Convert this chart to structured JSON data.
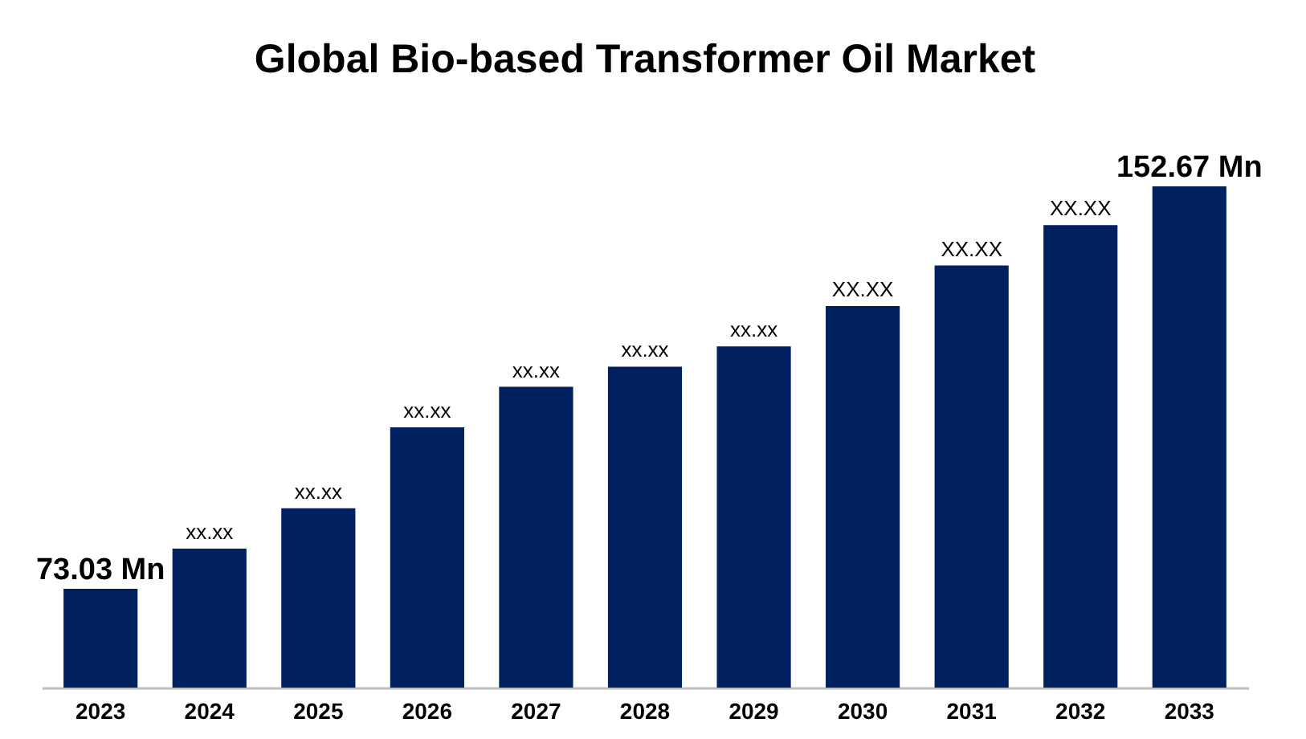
{
  "chart_data": {
    "type": "bar",
    "title": "Global Bio-based Transformer Oil Market",
    "categories": [
      "2023",
      "2024",
      "2025",
      "2026",
      "2027",
      "2028",
      "2029",
      "2030",
      "2031",
      "2032",
      "2033"
    ],
    "values": [
      73.03,
      81,
      89,
      105,
      113,
      117,
      121,
      129,
      137,
      145,
      152.67
    ],
    "value_labels": [
      "73.03 Mn",
      "xx.xx",
      "xx.xx",
      "xx.xx",
      "xx.xx",
      "xx.xx",
      "xx.xx",
      "XX.XX",
      "XX.XX",
      "XX.XX",
      "152.67 Mn"
    ],
    "ylim": [
      53.5,
      152.67
    ],
    "color": "#002060",
    "grid": false
  }
}
